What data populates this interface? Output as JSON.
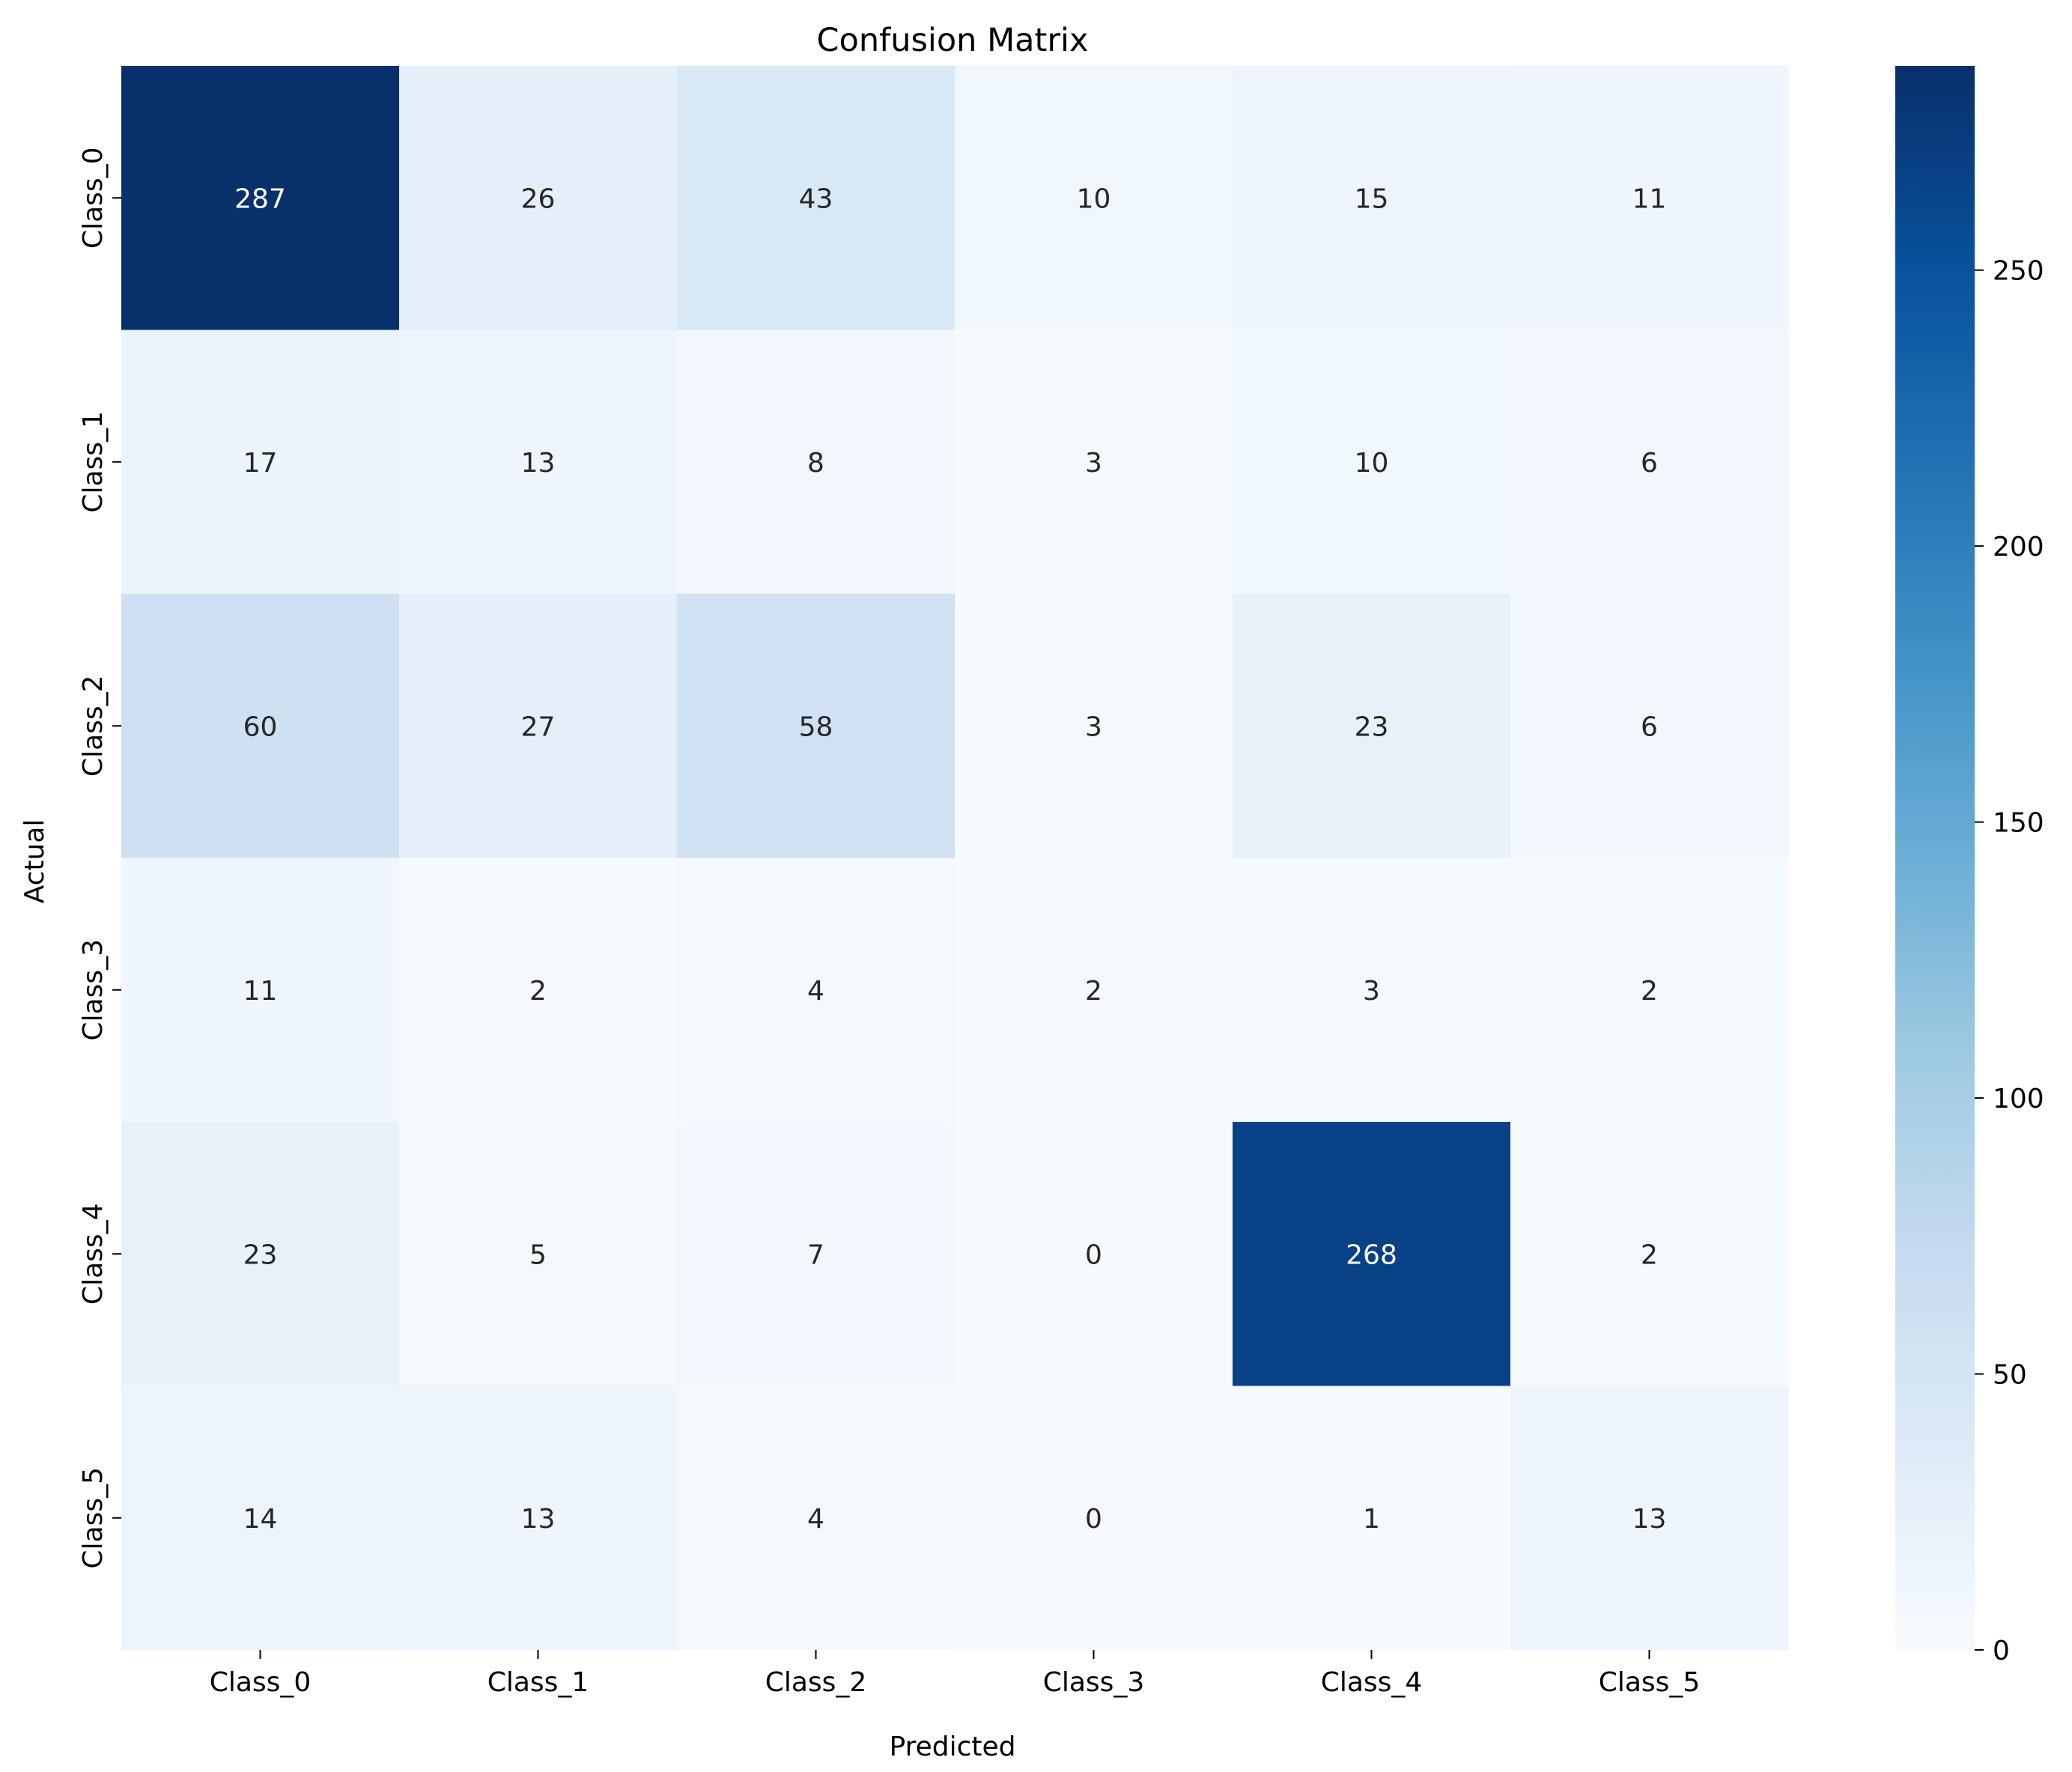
{
  "chart_data": {
    "type": "heatmap",
    "title": "Confusion Matrix",
    "xlabel": "Predicted",
    "ylabel": "Actual",
    "x_categories": [
      "Class_0",
      "Class_1",
      "Class_2",
      "Class_3",
      "Class_4",
      "Class_5"
    ],
    "y_categories": [
      "Class_0",
      "Class_1",
      "Class_2",
      "Class_3",
      "Class_4",
      "Class_5"
    ],
    "values": [
      [
        287,
        26,
        43,
        10,
        15,
        11
      ],
      [
        17,
        13,
        8,
        3,
        10,
        6
      ],
      [
        60,
        27,
        58,
        3,
        23,
        6
      ],
      [
        11,
        2,
        4,
        2,
        3,
        2
      ],
      [
        23,
        5,
        7,
        0,
        268,
        2
      ],
      [
        14,
        13,
        4,
        0,
        1,
        13
      ]
    ],
    "colormap": "Blues",
    "colorbar": {
      "range": [
        0,
        287
      ],
      "ticks": [
        0,
        50,
        100,
        150,
        200,
        250
      ],
      "tick_labels": [
        "0",
        "50",
        "100",
        "150",
        "200",
        "250"
      ]
    },
    "grid": false,
    "legend": "none"
  }
}
